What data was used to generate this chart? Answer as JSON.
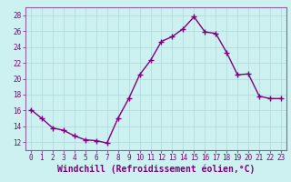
{
  "x": [
    0,
    1,
    2,
    3,
    4,
    5,
    6,
    7,
    8,
    9,
    10,
    11,
    12,
    13,
    14,
    15,
    16,
    17,
    18,
    19,
    20,
    21,
    22,
    23
  ],
  "y": [
    16.1,
    15.0,
    13.8,
    13.5,
    12.8,
    12.3,
    12.2,
    11.9,
    15.0,
    17.5,
    20.5,
    22.3,
    24.7,
    25.3,
    26.3,
    27.8,
    25.9,
    25.7,
    23.3,
    20.5,
    20.6,
    17.8,
    17.5,
    17.5
  ],
  "line_color": "#800080",
  "marker": "+",
  "markersize": 4,
  "linewidth": 1.0,
  "xlabel": "Windchill (Refroidissement éolien,°C)",
  "xlabel_fontsize": 7,
  "bg_color": "#cdf0f0",
  "grid_color": "#b0d8d8",
  "ylim": [
    11,
    29
  ],
  "yticks": [
    12,
    14,
    16,
    18,
    20,
    22,
    24,
    26,
    28
  ],
  "xlim": [
    -0.5,
    23.5
  ],
  "xticks": [
    0,
    1,
    2,
    3,
    4,
    5,
    6,
    7,
    8,
    9,
    10,
    11,
    12,
    13,
    14,
    15,
    16,
    17,
    18,
    19,
    20,
    21,
    22,
    23
  ],
  "tick_fontsize": 5.5,
  "tick_color": "#800080",
  "label_color": "#800080",
  "spine_color": "#9060a0"
}
